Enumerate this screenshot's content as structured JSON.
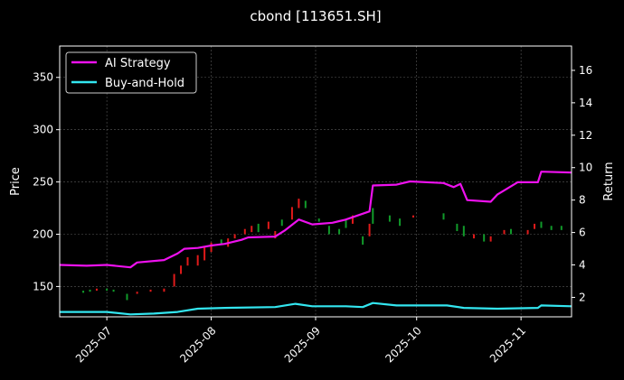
{
  "chart_data": {
    "type": "line",
    "title": "cbond [113651.SH]",
    "xlabel": "",
    "ylabel": "Price",
    "y2label": "Return",
    "grid": true,
    "legend_position": "top-left",
    "x_range": [
      "2025-06-17",
      "2025-11-16"
    ],
    "ylim": [
      121,
      380
    ],
    "y2lim": [
      0.8,
      17.5
    ],
    "x_ticks": [
      "2025-07",
      "2025-08",
      "2025-09",
      "2025-10",
      "2025-11"
    ],
    "y_ticks": [
      150,
      200,
      250,
      300,
      350
    ],
    "y2_ticks": [
      2,
      4,
      6,
      8,
      10,
      12,
      14,
      16
    ],
    "colors": {
      "background": "#000000",
      "ai_strategy": "#ee11ee",
      "buy_and_hold": "#33e6f0",
      "candle_up": "#e01a1a",
      "candle_down": "#119a2a",
      "grid": "#5a5a5a"
    },
    "series": [
      {
        "name": "AI Strategy",
        "axis": "right",
        "points": [
          [
            "2025-06-17",
            4.0
          ],
          [
            "2025-06-25",
            3.95
          ],
          [
            "2025-07-01",
            4.0
          ],
          [
            "2025-07-08",
            3.85
          ],
          [
            "2025-07-10",
            4.15
          ],
          [
            "2025-07-18",
            4.3
          ],
          [
            "2025-07-22",
            4.7
          ],
          [
            "2025-07-24",
            5.0
          ],
          [
            "2025-07-28",
            5.05
          ],
          [
            "2025-08-01",
            5.2
          ],
          [
            "2025-08-05",
            5.3
          ],
          [
            "2025-08-10",
            5.55
          ],
          [
            "2025-08-12",
            5.7
          ],
          [
            "2025-08-20",
            5.75
          ],
          [
            "2025-08-23",
            6.15
          ],
          [
            "2025-08-27",
            6.8
          ],
          [
            "2025-08-31",
            6.5
          ],
          [
            "2025-09-06",
            6.6
          ],
          [
            "2025-09-08",
            6.7
          ],
          [
            "2025-09-10",
            6.8
          ],
          [
            "2025-09-17",
            7.3
          ],
          [
            "2025-09-18",
            8.9
          ],
          [
            "2025-09-25",
            8.95
          ],
          [
            "2025-09-29",
            9.15
          ],
          [
            "2025-10-09",
            9.05
          ],
          [
            "2025-10-12",
            8.8
          ],
          [
            "2025-10-14",
            9.0
          ],
          [
            "2025-10-16",
            8.0
          ],
          [
            "2025-10-23",
            7.9
          ],
          [
            "2025-10-25",
            8.35
          ],
          [
            "2025-10-31",
            9.1
          ],
          [
            "2025-11-06",
            9.1
          ],
          [
            "2025-11-07",
            9.75
          ],
          [
            "2025-11-16",
            9.7
          ]
        ]
      },
      {
        "name": "Buy-and-Hold",
        "axis": "right",
        "points": [
          [
            "2025-06-17",
            1.1
          ],
          [
            "2025-07-01",
            1.1
          ],
          [
            "2025-07-08",
            0.95
          ],
          [
            "2025-07-15",
            1.0
          ],
          [
            "2025-07-22",
            1.1
          ],
          [
            "2025-07-28",
            1.3
          ],
          [
            "2025-08-05",
            1.35
          ],
          [
            "2025-08-20",
            1.4
          ],
          [
            "2025-08-26",
            1.6
          ],
          [
            "2025-08-31",
            1.45
          ],
          [
            "2025-09-10",
            1.45
          ],
          [
            "2025-09-15",
            1.4
          ],
          [
            "2025-09-18",
            1.65
          ],
          [
            "2025-09-25",
            1.5
          ],
          [
            "2025-10-10",
            1.5
          ],
          [
            "2025-10-15",
            1.35
          ],
          [
            "2025-10-25",
            1.3
          ],
          [
            "2025-11-06",
            1.35
          ],
          [
            "2025-11-07",
            1.5
          ],
          [
            "2025-11-16",
            1.45
          ]
        ]
      }
    ],
    "candles": [
      {
        "date": "2025-06-24",
        "open": 146,
        "close": 144
      },
      {
        "date": "2025-06-26",
        "open": 147,
        "close": 145
      },
      {
        "date": "2025-06-28",
        "open": 146,
        "close": 148
      },
      {
        "date": "2025-07-01",
        "open": 148,
        "close": 146
      },
      {
        "date": "2025-07-03",
        "open": 147,
        "close": 145
      },
      {
        "date": "2025-07-07",
        "open": 143,
        "close": 137
      },
      {
        "date": "2025-07-10",
        "open": 143,
        "close": 145
      },
      {
        "date": "2025-07-14",
        "open": 145,
        "close": 147
      },
      {
        "date": "2025-07-18",
        "open": 145,
        "close": 148
      },
      {
        "date": "2025-07-21",
        "open": 150,
        "close": 162
      },
      {
        "date": "2025-07-23",
        "open": 162,
        "close": 170
      },
      {
        "date": "2025-07-25",
        "open": 170,
        "close": 178
      },
      {
        "date": "2025-07-28",
        "open": 170,
        "close": 180
      },
      {
        "date": "2025-07-30",
        "open": 175,
        "close": 188
      },
      {
        "date": "2025-08-01",
        "open": 183,
        "close": 192
      },
      {
        "date": "2025-08-04",
        "open": 195,
        "close": 190
      },
      {
        "date": "2025-08-06",
        "open": 188,
        "close": 196
      },
      {
        "date": "2025-08-08",
        "open": 196,
        "close": 200
      },
      {
        "date": "2025-08-11",
        "open": 200,
        "close": 205
      },
      {
        "date": "2025-08-13",
        "open": 202,
        "close": 208
      },
      {
        "date": "2025-08-15",
        "open": 210,
        "close": 202
      },
      {
        "date": "2025-08-18",
        "open": 205,
        "close": 212
      },
      {
        "date": "2025-08-20",
        "open": 196,
        "close": 203
      },
      {
        "date": "2025-08-22",
        "open": 214,
        "close": 208
      },
      {
        "date": "2025-08-25",
        "open": 214,
        "close": 226
      },
      {
        "date": "2025-08-27",
        "open": 225,
        "close": 234
      },
      {
        "date": "2025-08-29",
        "open": 232,
        "close": 225
      },
      {
        "date": "2025-09-02",
        "open": 215,
        "close": 212
      },
      {
        "date": "2025-09-05",
        "open": 208,
        "close": 200
      },
      {
        "date": "2025-09-08",
        "open": 205,
        "close": 200
      },
      {
        "date": "2025-09-10",
        "open": 214,
        "close": 206
      },
      {
        "date": "2025-09-12",
        "open": 210,
        "close": 218
      },
      {
        "date": "2025-09-15",
        "open": 198,
        "close": 190
      },
      {
        "date": "2025-09-17",
        "open": 198,
        "close": 210
      },
      {
        "date": "2025-09-18",
        "open": 225,
        "close": 210
      },
      {
        "date": "2025-09-23",
        "open": 218,
        "close": 212
      },
      {
        "date": "2025-09-26",
        "open": 215,
        "close": 208
      },
      {
        "date": "2025-09-30",
        "open": 216,
        "close": 218
      },
      {
        "date": "2025-10-09",
        "open": 220,
        "close": 214
      },
      {
        "date": "2025-10-13",
        "open": 210,
        "close": 203
      },
      {
        "date": "2025-10-15",
        "open": 208,
        "close": 198
      },
      {
        "date": "2025-10-18",
        "open": 196,
        "close": 200
      },
      {
        "date": "2025-10-21",
        "open": 200,
        "close": 193
      },
      {
        "date": "2025-10-23",
        "open": 193,
        "close": 198
      },
      {
        "date": "2025-10-27",
        "open": 200,
        "close": 204
      },
      {
        "date": "2025-10-29",
        "open": 205,
        "close": 200
      },
      {
        "date": "2025-11-03",
        "open": 200,
        "close": 204
      },
      {
        "date": "2025-11-05",
        "open": 205,
        "close": 210
      },
      {
        "date": "2025-11-07",
        "open": 212,
        "close": 206
      },
      {
        "date": "2025-11-10",
        "open": 208,
        "close": 204
      },
      {
        "date": "2025-11-13",
        "open": 208,
        "close": 204
      }
    ]
  }
}
